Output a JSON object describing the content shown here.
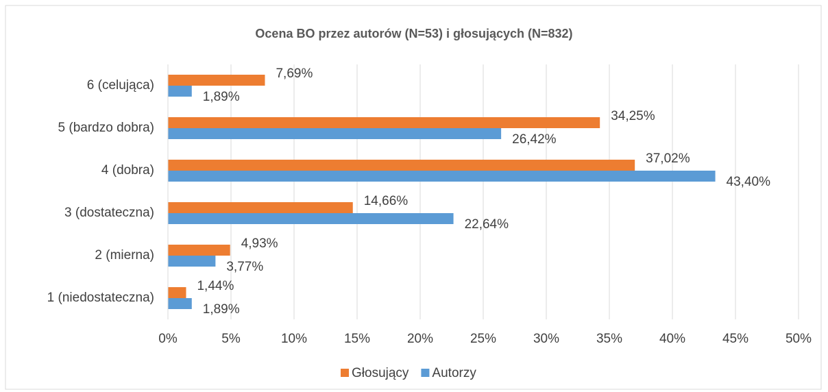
{
  "chart_data": {
    "type": "hbar",
    "title": "Ocena BO przez autorów (N=53) i głosujących (N=832)",
    "categories": [
      "6 (celująca)",
      "5 (bardzo dobra)",
      "4 (dobra)",
      "3 (dostateczna)",
      "2 (mierna)",
      "1 (niedostateczna)"
    ],
    "series": [
      {
        "name": "Głosujący",
        "color": "#ed7d31",
        "values": [
          7.69,
          34.25,
          37.02,
          14.66,
          4.93,
          1.44
        ],
        "value_labels": [
          "7,69%",
          "34,25%",
          "37,02%",
          "14,66%",
          "4,93%",
          "1,44%"
        ]
      },
      {
        "name": "Autorzy",
        "color": "#5b9bd5",
        "values": [
          1.89,
          26.42,
          43.4,
          22.64,
          3.77,
          1.89
        ],
        "value_labels": [
          "1,89%",
          "26,42%",
          "43,40%",
          "22,64%",
          "3,77%",
          "1,89%"
        ]
      }
    ],
    "xlim": [
      0,
      50
    ],
    "xticks": [
      {
        "value": 0,
        "label": "0%"
      },
      {
        "value": 5,
        "label": "5%"
      },
      {
        "value": 10,
        "label": "10%"
      },
      {
        "value": 15,
        "label": "15%"
      },
      {
        "value": 20,
        "label": "20%"
      },
      {
        "value": 25,
        "label": "25%"
      },
      {
        "value": 30,
        "label": "30%"
      },
      {
        "value": 35,
        "label": "35%"
      },
      {
        "value": 40,
        "label": "40%"
      },
      {
        "value": 45,
        "label": "45%"
      },
      {
        "value": 50,
        "label": "50%"
      }
    ],
    "grid": true,
    "legend": "bottom"
  }
}
